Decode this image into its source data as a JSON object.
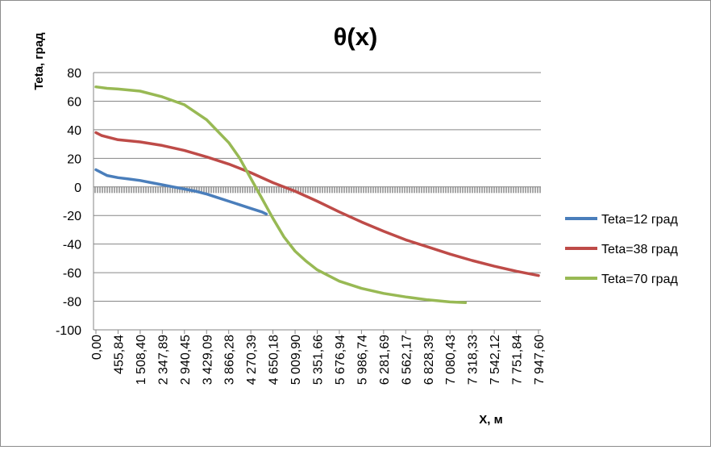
{
  "chart_data": {
    "type": "line",
    "title": "θ(x)",
    "xlabel": "X, м",
    "ylabel": "Teta, град",
    "ylim": [
      -100,
      80
    ],
    "ytick_step": 20,
    "grid": "horizontal",
    "legend_position": "right",
    "x_tick_labels": [
      "0,00",
      "455,84",
      "1 508,40",
      "2 347,89",
      "2 940,45",
      "3 429,09",
      "3 866,28",
      "4 270,39",
      "4 650,18",
      "5 009,90",
      "5 351,66",
      "5 676,94",
      "5 986,74",
      "6 281,69",
      "6 562,17",
      "6 828,39",
      "7 080,43",
      "7 318,33",
      "7 542,12",
      "7 751,84",
      "7 947,60"
    ],
    "series": [
      {
        "name": "Teta=12 град",
        "color": "#4a7ebb",
        "x_index": [
          0,
          0.25,
          0.5,
          1,
          1.5,
          2,
          2.5,
          3,
          3.5,
          4,
          4.5,
          5,
          5.5,
          6,
          6.5,
          7,
          7.5,
          7.7
        ],
        "y": [
          12,
          10,
          8,
          6.5,
          5.5,
          4.5,
          3,
          1.5,
          0,
          -1.5,
          -3,
          -5,
          -7.5,
          -10,
          -12.5,
          -15,
          -17.5,
          -19
        ]
      },
      {
        "name": "Teta=38 град",
        "color": "#be4b48",
        "x_index": [
          0,
          0.25,
          0.5,
          1,
          2,
          3,
          4,
          5,
          6,
          7,
          8,
          9,
          10,
          11,
          12,
          13,
          14,
          15,
          16,
          17,
          18,
          19,
          20
        ],
        "y": [
          38,
          36,
          35,
          33,
          31.5,
          29,
          25.5,
          21,
          16,
          10,
          3,
          -3,
          -10,
          -17.5,
          -24.5,
          -31,
          -37,
          -42,
          -47,
          -51.5,
          -55.5,
          -59,
          -62
        ]
      },
      {
        "name": "Teta=70 град",
        "color": "#98b954",
        "x_index": [
          0,
          0.5,
          1,
          2,
          3,
          4,
          5,
          6,
          6.5,
          7,
          7.5,
          8,
          8.5,
          9,
          9.5,
          10,
          11,
          12,
          13,
          14,
          15,
          16,
          16.7
        ],
        "y": [
          70,
          69,
          68.5,
          67,
          63,
          57.5,
          47,
          31,
          20,
          6,
          -8,
          -22,
          -35,
          -45,
          -52,
          -58,
          -66,
          -71,
          -74.5,
          -77,
          -79,
          -80.5,
          -81
        ]
      }
    ],
    "zero_band": {
      "color": "#8a8a8a",
      "y": -2
    }
  }
}
